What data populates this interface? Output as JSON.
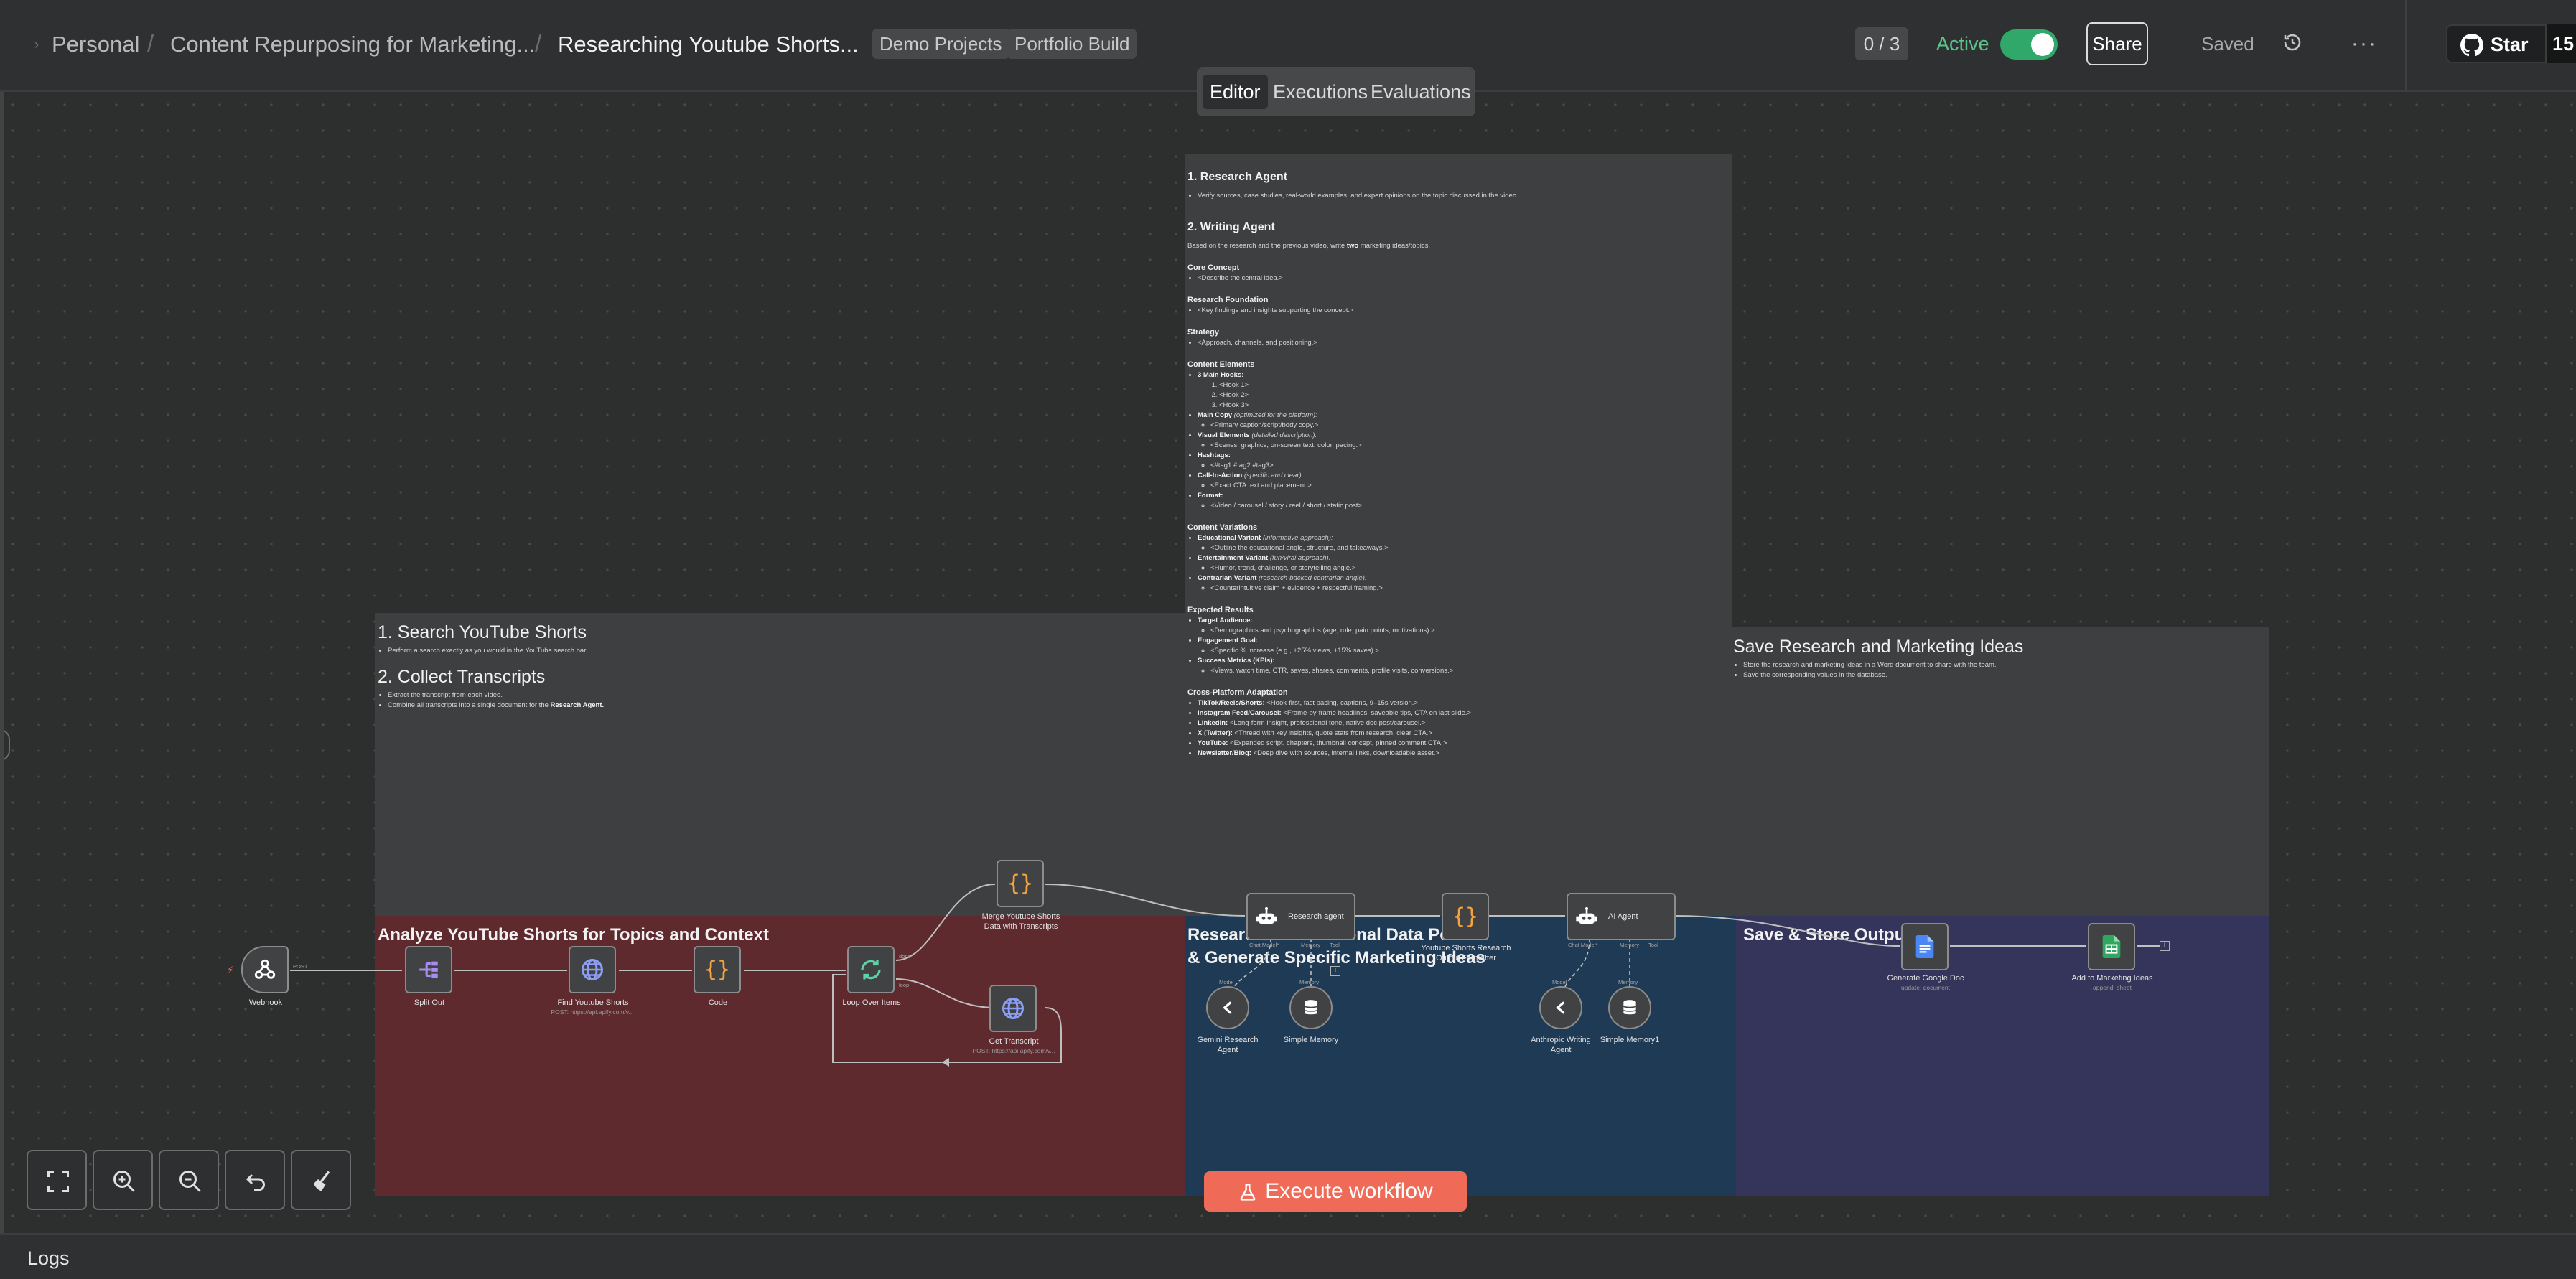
{
  "header": {
    "breadcrumbs": [
      "Personal",
      "Content Repurposing for Marketing...",
      "Researching Youtube Shorts..."
    ],
    "tags": [
      "Demo Projects",
      "Portfolio Build"
    ],
    "counter": "0 / 3",
    "active_label": "Active",
    "active": true,
    "share_label": "Share",
    "saved_label": "Saved",
    "star_label": "Star",
    "star_count": "15"
  },
  "tabs": [
    "Editor",
    "Executions",
    "Evaluations"
  ],
  "notes": {
    "search": {
      "heading1": "1. Search YouTube Shorts",
      "body1": "Perform a search exactly as you would in the YouTube search bar.",
      "heading2": "2. Collect Transcripts",
      "bullets2": [
        "Extract the transcript from each video.",
        "Combine all transcripts into a single document for the "
      ],
      "bullets2_bold": "Research Agent."
    },
    "agents_doc": {
      "h_research": "1. Research Agent",
      "research_bullet": "Verify sources, case studies, real-world examples, and expert opinions on the topic discussed in the video.",
      "h_writing": "2. Writing Agent",
      "writing_intro_a": "Based on the research and the previous video, write ",
      "writing_intro_bold": "two",
      "writing_intro_b": " marketing ideas/topics.",
      "core_concept": "Core Concept",
      "core_concept_item": "<Describe the central idea.>",
      "research_foundation": "Research Foundation",
      "research_foundation_item": "<Key findings and insights supporting the concept.>",
      "strategy": "Strategy",
      "strategy_item": "<Approach, channels, and positioning.>",
      "content_elements": "Content Elements",
      "main_hooks": "3 Main Hooks:",
      "hooks": [
        "<Hook 1>",
        "<Hook 2>",
        "<Hook 3>"
      ],
      "main_copy": "Main Copy",
      "main_copy_note": "(optimized for the platform):",
      "main_copy_item": "<Primary caption/script/body copy.>",
      "visual_elements": "Visual Elements",
      "visual_elements_note": "(detailed description):",
      "visual_elements_item": "<Scenes, graphics, on-screen text, color, pacing.>",
      "hashtags": "Hashtags:",
      "hashtags_item": "<#tag1 #tag2 #tag3>",
      "cta": "Call-to-Action",
      "cta_note": "(specific and clear):",
      "cta_item": "<Exact CTA text and placement.>",
      "format": "Format:",
      "format_item": "<Video / carousel / story / reel / short / static post>",
      "content_variations": "Content Variations",
      "edu_variant": "Educational Variant",
      "edu_variant_note": "(informative approach):",
      "edu_variant_item": "<Outline the educational angle, structure, and takeaways.>",
      "ent_variant": "Entertainment Variant",
      "ent_variant_note": "(fun/viral approach):",
      "ent_variant_item": "<Humor, trend, challenge, or storytelling angle.>",
      "con_variant": "Contrarian Variant",
      "con_variant_note": "(research-backed contrarian angle):",
      "con_variant_item": "<Counterintuitive claim + evidence + respectful framing.>",
      "expected_results": "Expected Results",
      "target_audience": "Target Audience:",
      "target_audience_item": "<Demographics and psychographics (age, role, pain points, motivations).>",
      "engagement_goal": "Engagement Goal:",
      "engagement_goal_item": "<Specific % increase (e.g., +25% views, +15% saves).>",
      "success_metrics": "Success Metrics (KPIs):",
      "success_metrics_item": "<Views, watch time, CTR, saves, shares, comments, profile visits, conversions.>",
      "cross_platform": "Cross-Platform Adaptation",
      "platforms": [
        {
          "name": "TikTok/Reels/Shorts:",
          "text": " <Hook-first, fast pacing, captions, 9–15s version.>"
        },
        {
          "name": "Instagram Feed/Carousel:",
          "text": " <Frame-by-frame headlines, saveable tips, CTA on last slide.>"
        },
        {
          "name": "LinkedIn:",
          "text": " <Long-form insight, professional tone, native doc post/carousel.>"
        },
        {
          "name": "X (Twitter):",
          "text": " <Thread with key insights, quote stats from research, clear CTA.>"
        },
        {
          "name": "YouTube:",
          "text": " <Expanded script, chapters, thumbnail concept, pinned comment CTA.>"
        },
        {
          "name": "Newsletter/Blog:",
          "text": " <Deep dive with sources, internal links, downloadable asset.>"
        }
      ]
    },
    "save": {
      "heading": "Save Research and Marketing Ideas",
      "bullets": [
        "Store the research and marketing ideas in a Word document to share with the team.",
        "Save the corresponding values in the database."
      ]
    },
    "analyze": {
      "title": "Analyze YouTube Shorts for Topics and Context"
    },
    "research_section": {
      "title_line1": "Research for Additional Data Points",
      "title_line2": "& Generate Specific Marketing Ideas"
    },
    "store": {
      "title": "Save & Store Output"
    }
  },
  "nodes": {
    "webhook": {
      "label": "Webhook",
      "port": "POST"
    },
    "split_out": {
      "label": "Split Out"
    },
    "find_shorts": {
      "label": "Find Youtube Shorts",
      "sub": "POST: https://api.apify.com/v..."
    },
    "code": {
      "label": "Code"
    },
    "loop": {
      "label": "Loop Over Items",
      "port_done": "done",
      "port_loop": "loop"
    },
    "merge": {
      "label_line1": "Merge Youtube Shorts",
      "label_line2": "Data with Transcripts"
    },
    "get_transcript": {
      "label": "Get Transcript",
      "sub": "POST: https://api.apify.com/v..."
    },
    "research_agent": {
      "label": "Research agent",
      "port_chat": "Chat Model*",
      "port_memory": "Memory",
      "port_tool": "Tool"
    },
    "gemini": {
      "label_line1": "Gemini Research",
      "label_line2": "Agent",
      "port": "Model"
    },
    "simple_memory": {
      "label": "Simple Memory",
      "port": "Memory"
    },
    "formatter": {
      "label_line1": "Youtube Shorts Research",
      "label_line2": "Output Formatter"
    },
    "ai_agent": {
      "label": "AI Agent",
      "port_chat": "Chat Model*",
      "port_memory": "Memory",
      "port_tool": "Tool"
    },
    "anthropic": {
      "label_line1": "Anthropic Writing",
      "label_line2": "Agent",
      "port": "Model"
    },
    "simple_memory1": {
      "label": "Simple Memory1",
      "port": "Memory"
    },
    "google_doc": {
      "label": "Generate Google Doc",
      "sub": "update: document"
    },
    "marketing_ideas": {
      "label": "Add to Marketing Ideas",
      "sub": "append: sheet"
    }
  },
  "toolbar": {
    "execute_label": "Execute workflow"
  },
  "logs_label": "Logs",
  "colors": {
    "accent": "#ef6b58",
    "active_green": "#2fa86a",
    "analyze_section": "#5e2a2e",
    "research_section": "#1f3a55",
    "store_section": "#35345a",
    "note_grey": "#3e3f40"
  }
}
